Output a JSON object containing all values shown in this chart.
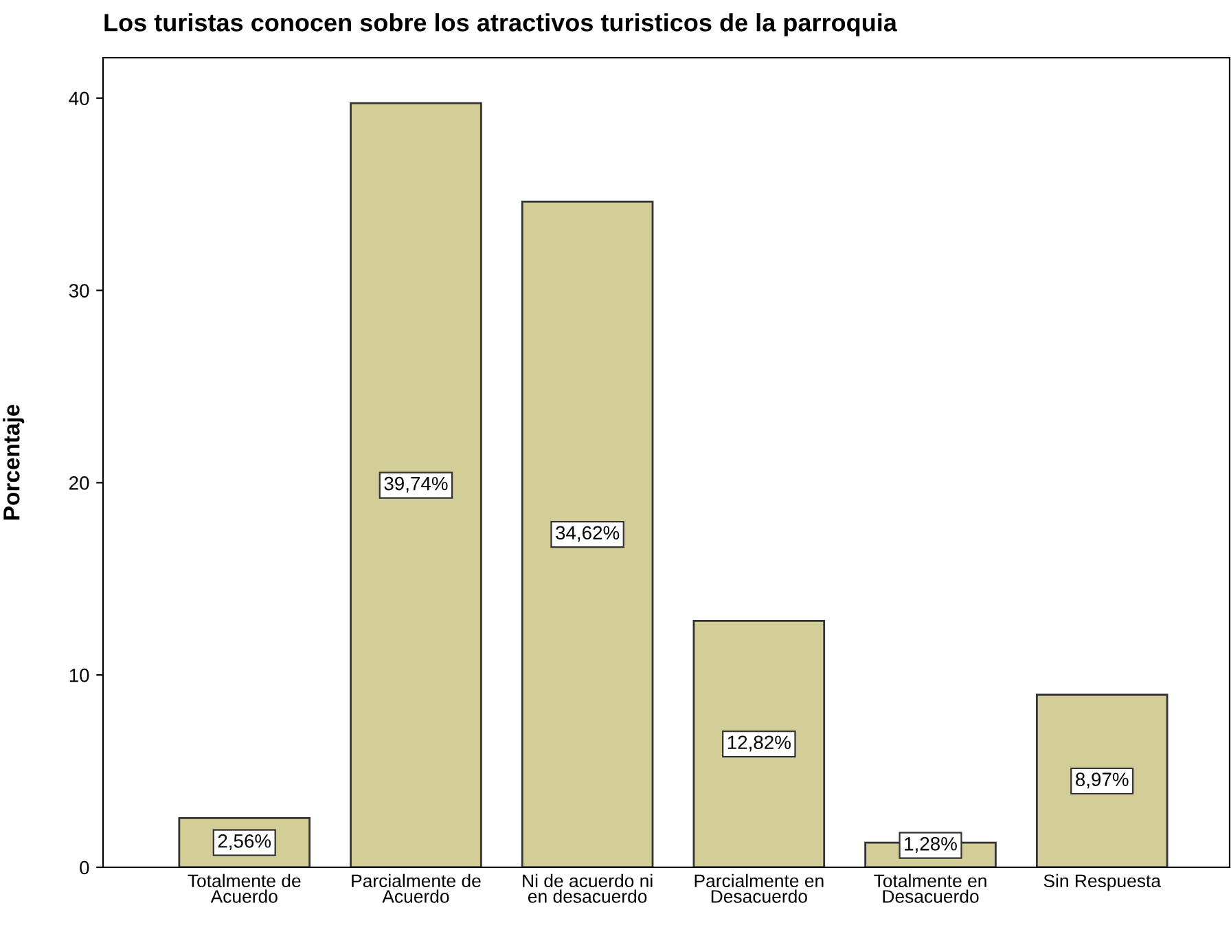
{
  "chart_data": {
    "type": "bar",
    "title": "Los turistas conocen sobre los atractivos turisticos de la parroquia",
    "ylabel": "Porcentaje",
    "categories": [
      "Totalmente de\nAcuerdo",
      "Parcialmente de\nAcuerdo",
      "Ni de acuerdo ni\nen desacuerdo",
      "Parcialmente en\nDesacuerdo",
      "Totalmente en\nDesacuerdo",
      "Sin Respuesta"
    ],
    "values": [
      2.56,
      39.74,
      34.62,
      12.82,
      1.28,
      8.97
    ],
    "value_labels": [
      "2,56%",
      "39,74%",
      "34,62%",
      "12,82%",
      "1,28%",
      "8,97%"
    ],
    "color": "#d3ce97",
    "ylim": [
      0,
      42.1
    ],
    "yticks": [
      0,
      10,
      20,
      30,
      40
    ],
    "grid": false,
    "legend": false
  }
}
